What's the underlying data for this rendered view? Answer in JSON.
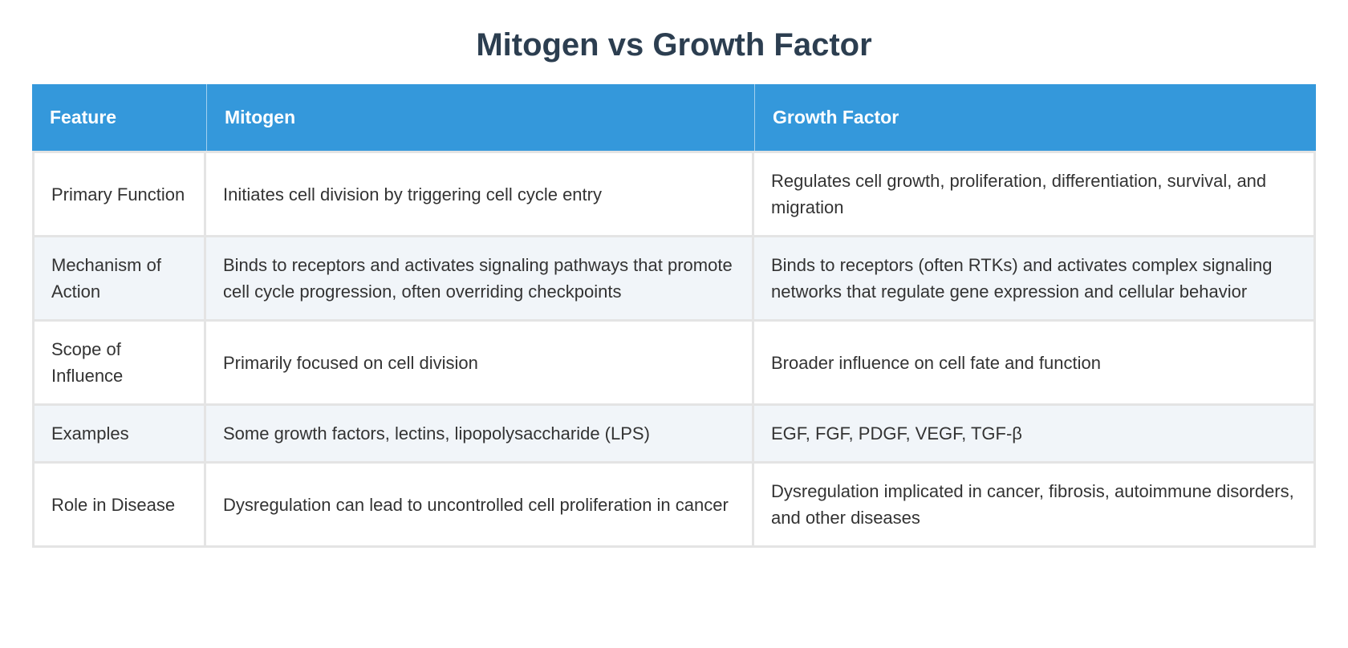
{
  "page_title": "Mitogen vs Growth Factor",
  "colors": {
    "header_bg": "#3498db",
    "header_text": "#ffffff",
    "title_text": "#2c3e50",
    "body_text": "#333333",
    "alt_row_bg": "#f1f5f9",
    "border": "#e4e4e4",
    "page_bg": "#ffffff"
  },
  "table": {
    "headers": [
      "Feature",
      "Mitogen",
      "Growth Factor"
    ],
    "rows": [
      {
        "feature": "Primary Function",
        "mitogen": "Initiates cell division by triggering cell cycle entry",
        "growth_factor": "Regulates cell growth, proliferation, differentiation, survival, and migration"
      },
      {
        "feature": "Mechanism of Action",
        "mitogen": "Binds to receptors and activates signaling pathways that promote cell cycle progression, often overriding checkpoints",
        "growth_factor": "Binds to receptors (often RTKs) and activates complex signaling networks that regulate gene expression and cellular behavior"
      },
      {
        "feature": "Scope of Influence",
        "mitogen": "Primarily focused on cell division",
        "growth_factor": "Broader influence on cell fate and function"
      },
      {
        "feature": "Examples",
        "mitogen": "Some growth factors, lectins, lipopolysaccharide (LPS)",
        "growth_factor": "EGF, FGF, PDGF, VEGF, TGF-β"
      },
      {
        "feature": "Role in Disease",
        "mitogen": "Dysregulation can lead to uncontrolled cell proliferation in cancer",
        "growth_factor": "Dysregulation implicated in cancer, fibrosis, autoimmune disorders, and other diseases"
      }
    ]
  }
}
